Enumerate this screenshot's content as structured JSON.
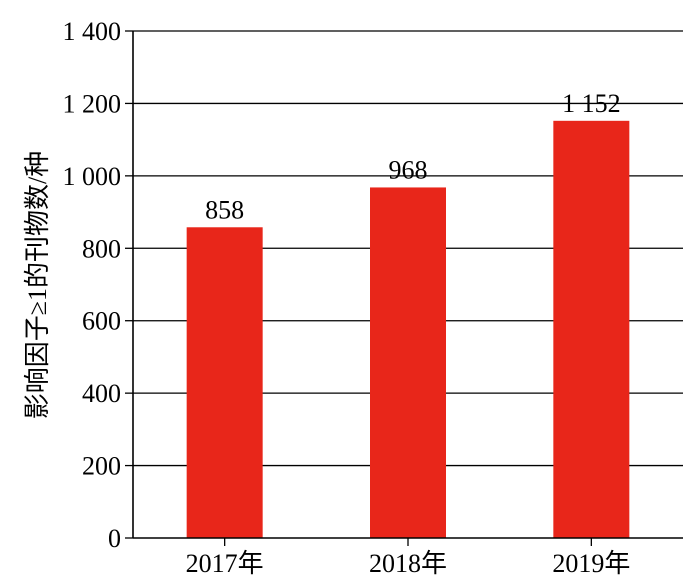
{
  "chart_data": {
    "type": "bar",
    "categories": [
      "2017年",
      "2018年",
      "2019年"
    ],
    "values": [
      858,
      968,
      1152
    ],
    "value_labels": [
      "858",
      "968",
      "1 152"
    ],
    "title": "",
    "xlabel": "",
    "ylabel": "影响因子≥1的刊物数/种",
    "ylim": [
      0,
      1400
    ],
    "yticks": [
      0,
      200,
      400,
      600,
      800,
      1000,
      1200,
      1400
    ],
    "ytick_labels": [
      "0",
      "200",
      "400",
      "600",
      "800",
      "1 000",
      "1 200",
      "1 400"
    ],
    "grid": "horizontal",
    "legend": "none",
    "bar_color": "#e8261a"
  }
}
